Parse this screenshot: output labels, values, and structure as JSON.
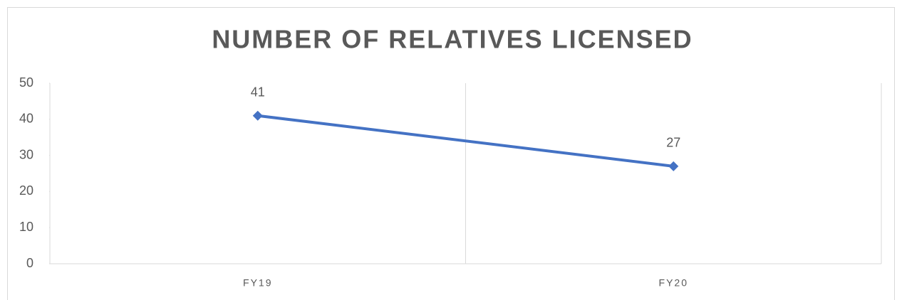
{
  "chart_data": {
    "type": "line",
    "title": "NUMBER OF RELATIVES LICENSED",
    "categories": [
      "FY19",
      "FY20"
    ],
    "values": [
      41,
      27
    ],
    "color": "#4472c4",
    "ylim": [
      0,
      50
    ],
    "yticks": [
      0,
      10,
      20,
      30,
      40,
      50
    ]
  }
}
